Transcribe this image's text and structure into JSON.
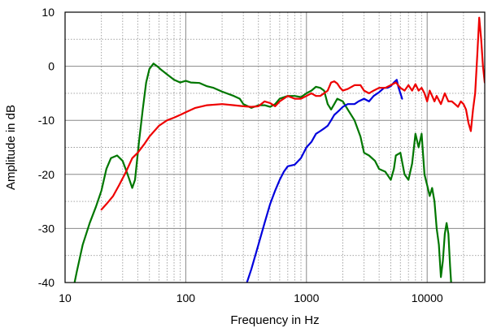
{
  "chart_data": {
    "type": "line",
    "title": "",
    "xlabel": "Frequency in Hz",
    "ylabel": "Amplitude in dB",
    "x_scale": "log",
    "xlim": [
      10,
      30000
    ],
    "ylim": [
      -40,
      10
    ],
    "grid": true,
    "x_ticks": [
      10,
      100,
      1000,
      10000
    ],
    "x_tick_labels": [
      "10",
      "100",
      "1000",
      "10000"
    ],
    "y_ticks": [
      -40,
      -30,
      -20,
      -10,
      0,
      10
    ],
    "y_tick_labels": [
      "-40",
      "-30",
      "-20",
      "-10",
      "0",
      "10"
    ],
    "series": [
      {
        "color": "#007700",
        "points": [
          [
            11.5,
            -42
          ],
          [
            12.5,
            -38
          ],
          [
            14,
            -33
          ],
          [
            16,
            -29
          ],
          [
            18,
            -26
          ],
          [
            20,
            -23
          ],
          [
            22,
            -19
          ],
          [
            24,
            -17
          ],
          [
            27,
            -16.5
          ],
          [
            30,
            -17.5
          ],
          [
            33,
            -20
          ],
          [
            36,
            -22.5
          ],
          [
            38,
            -21
          ],
          [
            41,
            -14
          ],
          [
            44,
            -8
          ],
          [
            47,
            -3
          ],
          [
            50,
            -0.5
          ],
          [
            54,
            0.5
          ],
          [
            58,
            0
          ],
          [
            63,
            -0.7
          ],
          [
            70,
            -1.5
          ],
          [
            80,
            -2.5
          ],
          [
            90,
            -3
          ],
          [
            100,
            -2.7
          ],
          [
            110,
            -3
          ],
          [
            130,
            -3.1
          ],
          [
            150,
            -3.7
          ],
          [
            170,
            -4
          ],
          [
            200,
            -4.7
          ],
          [
            250,
            -5.5
          ],
          [
            280,
            -6
          ],
          [
            300,
            -7
          ],
          [
            350,
            -7.7
          ],
          [
            400,
            -7.2
          ],
          [
            450,
            -7.2
          ],
          [
            500,
            -7.5
          ],
          [
            550,
            -7
          ],
          [
            600,
            -6
          ],
          [
            700,
            -5.5
          ],
          [
            800,
            -5.5
          ],
          [
            900,
            -5.7
          ],
          [
            1000,
            -5
          ],
          [
            1100,
            -4.5
          ],
          [
            1200,
            -3.8
          ],
          [
            1300,
            -4
          ],
          [
            1400,
            -4.5
          ],
          [
            1500,
            -7
          ],
          [
            1600,
            -8
          ],
          [
            1700,
            -7
          ],
          [
            1800,
            -6
          ],
          [
            2000,
            -6.5
          ],
          [
            2200,
            -8
          ],
          [
            2500,
            -10
          ],
          [
            2800,
            -13
          ],
          [
            3000,
            -16
          ],
          [
            3300,
            -16.5
          ],
          [
            3700,
            -17.5
          ],
          [
            4000,
            -19
          ],
          [
            4500,
            -19.5
          ],
          [
            5000,
            -21
          ],
          [
            5300,
            -19
          ],
          [
            5500,
            -16.5
          ],
          [
            6000,
            -16
          ],
          [
            6500,
            -20
          ],
          [
            7000,
            -21
          ],
          [
            7500,
            -18
          ],
          [
            8000,
            -12.5
          ],
          [
            8500,
            -15
          ],
          [
            9000,
            -12.5
          ],
          [
            9500,
            -20
          ],
          [
            10000,
            -22
          ],
          [
            10500,
            -24
          ],
          [
            11000,
            -22.5
          ],
          [
            11500,
            -25
          ],
          [
            12000,
            -30
          ],
          [
            12500,
            -33
          ],
          [
            13000,
            -39
          ],
          [
            13500,
            -36
          ],
          [
            14000,
            -31
          ],
          [
            14500,
            -29
          ],
          [
            15000,
            -31
          ],
          [
            15500,
            -37
          ],
          [
            16000,
            -42
          ]
        ]
      },
      {
        "color": "#0000dd",
        "points": [
          [
            300,
            -42
          ],
          [
            350,
            -37.5
          ],
          [
            400,
            -33
          ],
          [
            450,
            -29
          ],
          [
            500,
            -25.5
          ],
          [
            550,
            -23
          ],
          [
            600,
            -21
          ],
          [
            650,
            -19.5
          ],
          [
            700,
            -18.5
          ],
          [
            800,
            -18.2
          ],
          [
            900,
            -17
          ],
          [
            1000,
            -15
          ],
          [
            1100,
            -14
          ],
          [
            1200,
            -12.5
          ],
          [
            1300,
            -12
          ],
          [
            1400,
            -11.5
          ],
          [
            1500,
            -11
          ],
          [
            1600,
            -10
          ],
          [
            1700,
            -9
          ],
          [
            1800,
            -8.5
          ],
          [
            1900,
            -8
          ],
          [
            2000,
            -7.5
          ],
          [
            2200,
            -7
          ],
          [
            2500,
            -7
          ],
          [
            2700,
            -6.5
          ],
          [
            3000,
            -6
          ],
          [
            3300,
            -6.5
          ],
          [
            3600,
            -5.5
          ],
          [
            4000,
            -4.8
          ],
          [
            4400,
            -4
          ],
          [
            4700,
            -4
          ],
          [
            5000,
            -3.7
          ],
          [
            5300,
            -3
          ],
          [
            5600,
            -2.5
          ],
          [
            5800,
            -4
          ],
          [
            6000,
            -5
          ],
          [
            6200,
            -6
          ]
        ]
      },
      {
        "color": "#ee0000",
        "points": [
          [
            20,
            -26.5
          ],
          [
            22,
            -25.5
          ],
          [
            25,
            -24
          ],
          [
            28,
            -22
          ],
          [
            32,
            -19.5
          ],
          [
            36,
            -17
          ],
          [
            40,
            -16
          ],
          [
            45,
            -14.5
          ],
          [
            50,
            -13
          ],
          [
            60,
            -11
          ],
          [
            70,
            -10
          ],
          [
            80,
            -9.5
          ],
          [
            90,
            -9
          ],
          [
            100,
            -8.5
          ],
          [
            120,
            -7.7
          ],
          [
            150,
            -7.2
          ],
          [
            200,
            -7
          ],
          [
            250,
            -7.2
          ],
          [
            300,
            -7.4
          ],
          [
            350,
            -7.5
          ],
          [
            400,
            -7.4
          ],
          [
            450,
            -6.5
          ],
          [
            500,
            -6.8
          ],
          [
            550,
            -7.4
          ],
          [
            600,
            -6.5
          ],
          [
            700,
            -5.5
          ],
          [
            800,
            -6
          ],
          [
            900,
            -6
          ],
          [
            1000,
            -5.5
          ],
          [
            1100,
            -5
          ],
          [
            1200,
            -5.5
          ],
          [
            1300,
            -5.5
          ],
          [
            1400,
            -5
          ],
          [
            1500,
            -4.5
          ],
          [
            1600,
            -3
          ],
          [
            1700,
            -2.8
          ],
          [
            1800,
            -3.2
          ],
          [
            1900,
            -4
          ],
          [
            2000,
            -4.5
          ],
          [
            2200,
            -4.2
          ],
          [
            2500,
            -3.5
          ],
          [
            2800,
            -3.5
          ],
          [
            3000,
            -4.5
          ],
          [
            3300,
            -5
          ],
          [
            3600,
            -4.5
          ],
          [
            4000,
            -4
          ],
          [
            4500,
            -4
          ],
          [
            5000,
            -3.5
          ],
          [
            5500,
            -3
          ],
          [
            6000,
            -4
          ],
          [
            6500,
            -4.5
          ],
          [
            7000,
            -3.5
          ],
          [
            7500,
            -4.5
          ],
          [
            8000,
            -3.3
          ],
          [
            8500,
            -4.5
          ],
          [
            9000,
            -4
          ],
          [
            9500,
            -5
          ],
          [
            10000,
            -6.5
          ],
          [
            10500,
            -4.5
          ],
          [
            11000,
            -5.5
          ],
          [
            11500,
            -6.5
          ],
          [
            12000,
            -5.5
          ],
          [
            13000,
            -7
          ],
          [
            14000,
            -5
          ],
          [
            15000,
            -6.5
          ],
          [
            16000,
            -6.5
          ],
          [
            17000,
            -7
          ],
          [
            18000,
            -7.5
          ],
          [
            19000,
            -6.5
          ],
          [
            20000,
            -7
          ],
          [
            21000,
            -8
          ],
          [
            22000,
            -10.5
          ],
          [
            23000,
            -12
          ],
          [
            24000,
            -8
          ],
          [
            25000,
            -5
          ],
          [
            26000,
            2
          ],
          [
            27000,
            9
          ],
          [
            28000,
            5
          ],
          [
            29000,
            0
          ],
          [
            30000,
            -3
          ]
        ]
      }
    ]
  }
}
